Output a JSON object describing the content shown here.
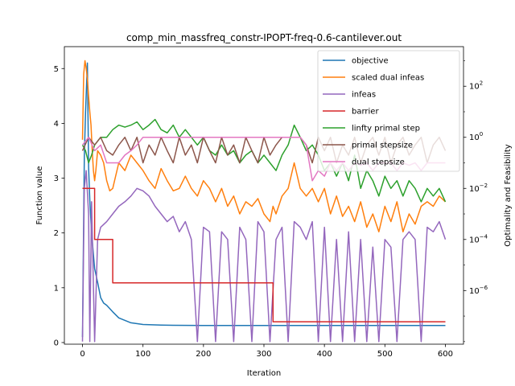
{
  "chart_data": {
    "type": "line",
    "title": "comp_min_massfreq_constr-IPOPT-freq-0.6-cantilever.out",
    "xlabel": "Iteration",
    "ylabel": "Function value",
    "y2label": "Optimality and Feasibility",
    "xlim": [
      -30,
      630
    ],
    "ylim": [
      -0.03,
      5.4
    ],
    "y2lim_log10": [
      -8.1,
      3.55
    ],
    "y2_scale": "log",
    "x_ticks": [
      0,
      100,
      200,
      300,
      400,
      500,
      600
    ],
    "y_ticks": [
      0,
      1,
      2,
      3,
      4,
      5
    ],
    "y2_ticks_log10": [
      -6,
      -4,
      -2,
      0,
      2
    ],
    "y2_tick_labels": [
      {
        "base": "10",
        "exp": "−6"
      },
      {
        "base": "10",
        "exp": "−4"
      },
      {
        "base": "10",
        "exp": "−2"
      },
      {
        "base": "10",
        "exp": "0"
      },
      {
        "base": "10",
        "exp": "2"
      }
    ],
    "grid": false,
    "legend_position": "top-right",
    "series": [
      {
        "name": "objective",
        "axis": "left",
        "color": "#1f77b4",
        "x": [
          0,
          3,
          5,
          8,
          10,
          12,
          15,
          18,
          20,
          25,
          30,
          35,
          40,
          50,
          60,
          80,
          100,
          130,
          150,
          200,
          250,
          300,
          350,
          400,
          450,
          500,
          550,
          600
        ],
        "y": [
          0.1,
          3.4,
          4.2,
          5.1,
          3.2,
          2.6,
          2.0,
          1.6,
          1.35,
          1.1,
          0.82,
          0.72,
          0.68,
          0.56,
          0.45,
          0.36,
          0.33,
          0.32,
          0.315,
          0.31,
          0.31,
          0.31,
          0.31,
          0.31,
          0.31,
          0.31,
          0.31,
          0.31
        ]
      },
      {
        "name": "scaled dual infeas",
        "axis": "right",
        "color": "#ff7f0e",
        "x": [
          0,
          2,
          4,
          6,
          8,
          10,
          12,
          14,
          16,
          18,
          20,
          22,
          25,
          30,
          35,
          40,
          45,
          50,
          60,
          70,
          80,
          90,
          100,
          110,
          120,
          130,
          140,
          150,
          160,
          170,
          180,
          190,
          200,
          210,
          220,
          230,
          240,
          250,
          260,
          270,
          280,
          290,
          300,
          310,
          315,
          320,
          330,
          340,
          350,
          360,
          370,
          380,
          390,
          400,
          410,
          420,
          430,
          440,
          450,
          460,
          470,
          480,
          490,
          500,
          510,
          520,
          530,
          540,
          550,
          560,
          570,
          580,
          590,
          600
        ],
        "y": [
          0.8,
          300,
          1000,
          500,
          200,
          40,
          10,
          3,
          0.3,
          0.05,
          0.02,
          0.05,
          0.3,
          0.2,
          0.1,
          0.02,
          0.008,
          0.01,
          0.1,
          0.05,
          0.2,
          0.1,
          0.05,
          0.02,
          0.01,
          0.06,
          0.02,
          0.008,
          0.01,
          0.03,
          0.01,
          0.005,
          0.02,
          0.01,
          0.003,
          0.01,
          0.002,
          0.005,
          0.001,
          0.003,
          0.002,
          0.004,
          0.001,
          0.0005,
          0.002,
          0.001,
          0.005,
          0.01,
          0.1,
          0.01,
          0.005,
          0.01,
          0.003,
          0.01,
          0.001,
          0.005,
          0.0008,
          0.002,
          0.0005,
          0.003,
          0.0003,
          0.001,
          0.0002,
          0.002,
          0.0005,
          0.003,
          0.0002,
          0.001,
          0.0004,
          0.002,
          0.003,
          0.002,
          0.005,
          0.003
        ]
      },
      {
        "name": "infeas",
        "axis": "right",
        "color": "#9467bd",
        "x": [
          0,
          3,
          6,
          10,
          12,
          15,
          20,
          25,
          30,
          40,
          50,
          60,
          70,
          80,
          90,
          100,
          110,
          120,
          130,
          140,
          150,
          160,
          170,
          180,
          190,
          200,
          210,
          220,
          230,
          240,
          250,
          260,
          270,
          280,
          290,
          300,
          310,
          320,
          330,
          340,
          350,
          360,
          370,
          380,
          390,
          400,
          410,
          420,
          430,
          440,
          450,
          460,
          470,
          480,
          490,
          500,
          510,
          520,
          530,
          540,
          550,
          560,
          570,
          580,
          590,
          600
        ],
        "y": [
          1e-08,
          0.01,
          0.05,
          0.001,
          1e-08,
          0.003,
          1e-08,
          0.0001,
          0.0003,
          0.0005,
          0.001,
          0.002,
          0.003,
          0.005,
          0.01,
          0.008,
          0.005,
          0.002,
          0.001,
          0.0005,
          0.0008,
          0.0002,
          0.0005,
          0.0001,
          1e-08,
          0.0003,
          0.0002,
          1e-08,
          0.0002,
          0.0001,
          1e-08,
          0.0003,
          0.0001,
          1e-08,
          0.0005,
          0.0002,
          1e-08,
          0.0001,
          0.0003,
          1e-08,
          0.0005,
          0.0003,
          0.0001,
          0.0005,
          1e-08,
          0.0003,
          1e-08,
          0.0001,
          1e-08,
          0.0002,
          1e-08,
          0.0001,
          1e-08,
          5e-05,
          1e-08,
          0.0001,
          5e-05,
          1e-08,
          0.0001,
          0.0002,
          0.0001,
          1e-08,
          0.0003,
          0.0002,
          0.0005,
          0.0001
        ]
      },
      {
        "name": "barrier",
        "axis": "right",
        "color": "#d62728",
        "x": [
          0,
          20,
          20,
          50,
          50,
          315,
          315,
          600
        ],
        "y": [
          0.01,
          0.01,
          0.0001,
          0.0001,
          2e-06,
          2e-06,
          6e-08,
          6e-08
        ]
      },
      {
        "name": "linfty primal step",
        "axis": "right",
        "color": "#2ca02c",
        "x": [
          0,
          5,
          10,
          15,
          20,
          30,
          40,
          50,
          60,
          70,
          80,
          90,
          100,
          110,
          120,
          130,
          140,
          150,
          160,
          170,
          180,
          190,
          200,
          210,
          220,
          230,
          240,
          250,
          260,
          270,
          280,
          290,
          300,
          310,
          320,
          330,
          340,
          350,
          360,
          370,
          380,
          390,
          400,
          410,
          420,
          430,
          440,
          450,
          460,
          470,
          480,
          490,
          500,
          510,
          520,
          530,
          540,
          550,
          560,
          570,
          580,
          590,
          600
        ],
        "y": [
          0.5,
          0.3,
          0.1,
          0.2,
          0.5,
          1.0,
          1.0,
          2.0,
          3.0,
          2.5,
          3.0,
          4.0,
          2.0,
          3.0,
          5.0,
          2.0,
          1.5,
          3.0,
          1.0,
          2.0,
          1.0,
          0.5,
          1.0,
          0.3,
          0.2,
          0.5,
          0.2,
          0.3,
          0.1,
          0.2,
          0.3,
          0.1,
          0.2,
          0.1,
          0.05,
          0.2,
          0.5,
          3.0,
          1.0,
          0.3,
          0.5,
          0.2,
          0.05,
          0.1,
          0.03,
          0.1,
          0.02,
          0.2,
          0.01,
          0.05,
          0.02,
          0.005,
          0.03,
          0.01,
          0.02,
          0.005,
          0.02,
          0.01,
          0.003,
          0.01,
          0.005,
          0.01,
          0.003
        ]
      },
      {
        "name": "primal stepsize",
        "axis": "right",
        "color": "#8c564b",
        "x": [
          0,
          10,
          20,
          30,
          40,
          50,
          60,
          70,
          80,
          90,
          100,
          110,
          120,
          130,
          140,
          150,
          160,
          170,
          180,
          190,
          200,
          210,
          220,
          230,
          240,
          250,
          260,
          270,
          280,
          290,
          300,
          310,
          320,
          330,
          340,
          350,
          360,
          370,
          380,
          390,
          400,
          410,
          420,
          430,
          440,
          450,
          460,
          470,
          480,
          490,
          500,
          510,
          520,
          530,
          540,
          550,
          560,
          570,
          580,
          590,
          600
        ],
        "y": [
          0.3,
          1.0,
          0.5,
          1.0,
          0.3,
          0.2,
          0.5,
          1.0,
          0.3,
          1.0,
          0.1,
          0.5,
          0.2,
          1.0,
          0.3,
          0.1,
          1.0,
          0.2,
          0.5,
          0.1,
          1.0,
          0.3,
          0.1,
          1.0,
          0.2,
          0.5,
          0.1,
          1.0,
          0.3,
          0.1,
          1.0,
          0.2,
          0.5,
          1.0,
          1.0,
          1.0,
          1.0,
          0.5,
          0.1,
          1.0,
          0.3,
          1.0,
          0.1,
          0.5,
          0.2,
          1.0,
          0.1,
          0.5,
          1.0,
          0.2,
          1.0,
          0.1,
          0.5,
          1.0,
          0.2,
          0.5,
          1.0,
          0.1,
          0.5,
          1.0,
          0.3
        ]
      },
      {
        "name": "dual stepsize",
        "axis": "right",
        "color": "#e377c2",
        "x": [
          0,
          10,
          20,
          30,
          40,
          50,
          60,
          70,
          80,
          90,
          100,
          110,
          120,
          130,
          140,
          150,
          160,
          170,
          180,
          190,
          200,
          210,
          220,
          230,
          240,
          250,
          260,
          270,
          280,
          290,
          300,
          310,
          320,
          330,
          340,
          350,
          360,
          370,
          380,
          390,
          400,
          410,
          420,
          430,
          440,
          450,
          460,
          470,
          480,
          490,
          500,
          510,
          520,
          530,
          540,
          550,
          560,
          570,
          580,
          590,
          600
        ],
        "y": [
          0.5,
          1.0,
          0.3,
          0.5,
          0.1,
          0.1,
          0.1,
          0.2,
          0.3,
          0.5,
          1.0,
          1.0,
          1.0,
          1.0,
          1.0,
          1.0,
          1.0,
          1.0,
          1.0,
          1.0,
          1.0,
          1.0,
          1.0,
          1.0,
          1.0,
          1.0,
          1.0,
          1.0,
          1.0,
          1.0,
          1.0,
          1.0,
          1.0,
          1.0,
          1.0,
          1.0,
          1.0,
          0.5,
          0.02,
          0.05,
          0.03,
          0.1,
          0.05,
          0.1,
          0.05,
          0.1,
          0.08,
          0.1,
          0.05,
          0.1,
          0.1,
          0.1,
          0.05,
          0.1,
          0.08,
          0.1,
          0.05,
          0.1,
          0.1,
          0.1,
          0.1
        ]
      }
    ]
  }
}
